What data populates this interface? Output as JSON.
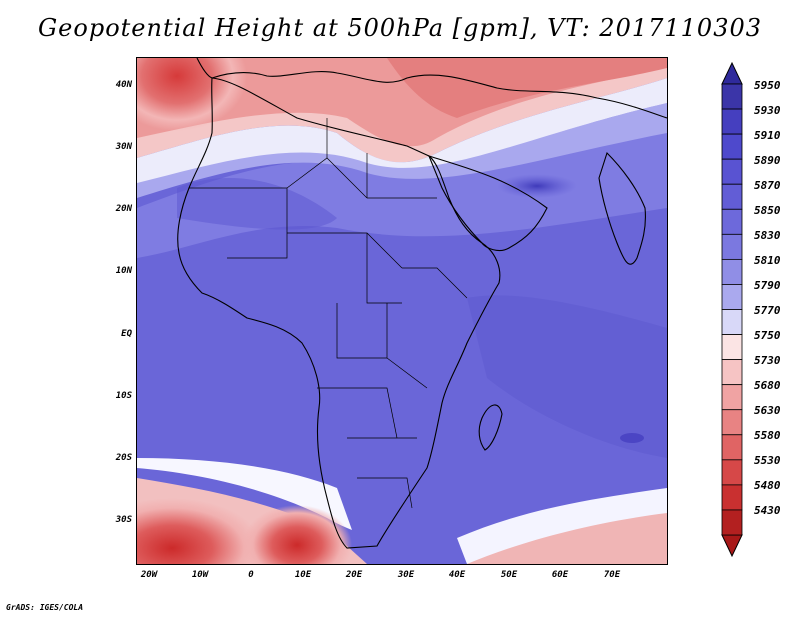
{
  "title": "Geopotential Height at 500hPa [gpm], VT: 2017110303",
  "credit": "GrADS: IGES/COLA",
  "map": {
    "region": "Africa and surrounding oceans",
    "lon_range": [
      -23,
      80
    ],
    "lat_range": [
      -37,
      45
    ],
    "y_axis_labels": [
      "40N",
      "30N",
      "20N",
      "10N",
      "EQ",
      "10S",
      "20S",
      "30S"
    ],
    "x_axis_labels": [
      "20W",
      "10W",
      "0",
      "10E",
      "20E",
      "30E",
      "40E",
      "50E",
      "60E",
      "70E"
    ]
  },
  "colorbar": {
    "levels": [
      "5950",
      "5930",
      "5910",
      "5890",
      "5870",
      "5850",
      "5830",
      "5810",
      "5790",
      "5770",
      "5750",
      "5730",
      "5680",
      "5630",
      "5580",
      "5530",
      "5480",
      "5430"
    ],
    "colors": [
      "#3b35a8",
      "#453fbf",
      "#4e49cc",
      "#5953d2",
      "#625dd6",
      "#6d69db",
      "#7b78e0",
      "#908ee6",
      "#aaa9ee",
      "#d8d8f8",
      "#fbe4e4",
      "#f6c4c4",
      "#f0a3a3",
      "#e88383",
      "#e06464",
      "#d64848",
      "#c93030",
      "#b32020"
    ]
  }
}
